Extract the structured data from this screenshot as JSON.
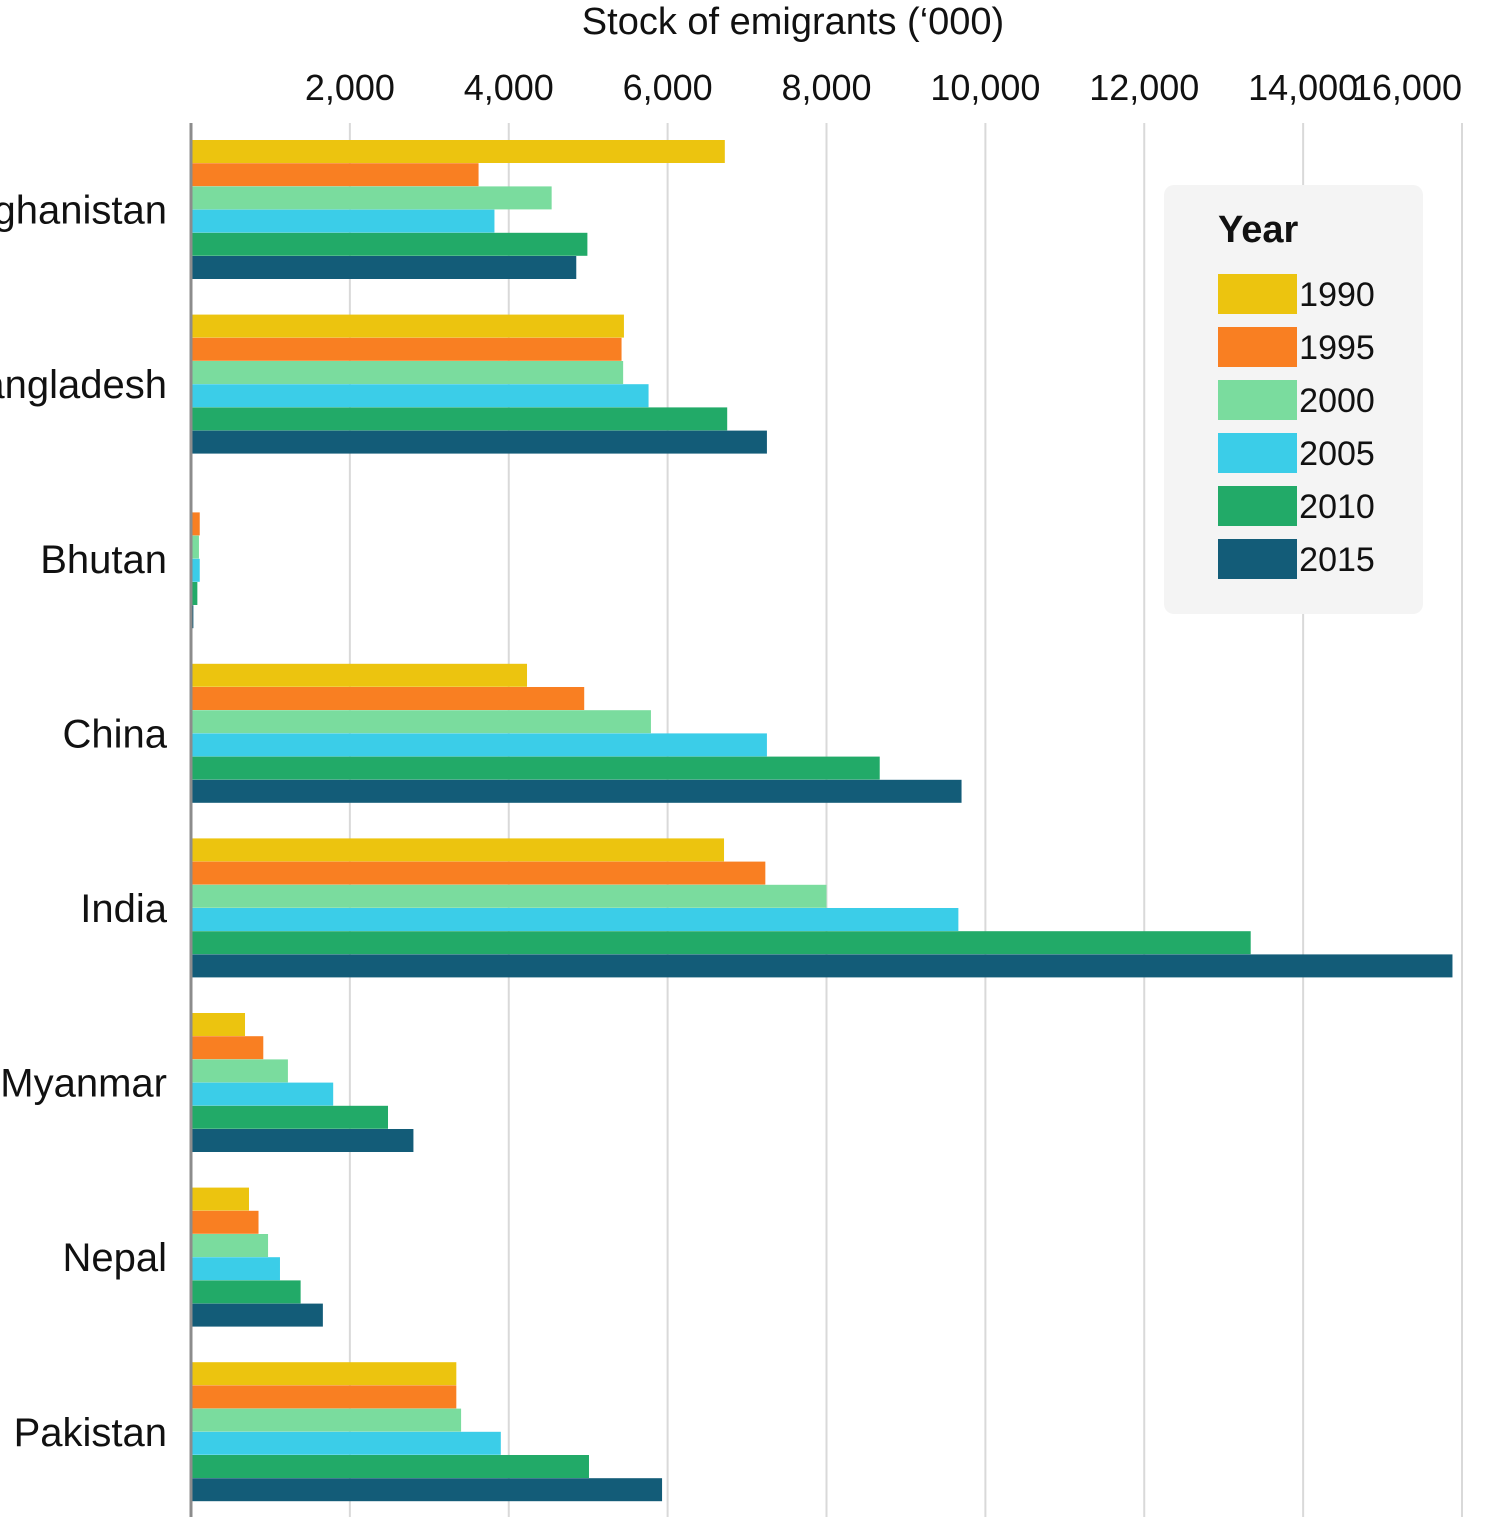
{
  "chart_data": {
    "type": "bar",
    "orientation": "horizontal",
    "title": "",
    "xlabel": "Stock of emigrants (‘000)",
    "ylabel": "",
    "xlim": [
      0,
      16000
    ],
    "x_ticks": [
      2000,
      4000,
      6000,
      8000,
      10000,
      12000,
      14000,
      16000
    ],
    "x_tick_labels": [
      "2,000",
      "4,000",
      "6,000",
      "8,000",
      "10,000",
      "12,000",
      "14,000",
      "16,000"
    ],
    "grid": true,
    "categories": [
      "Afghanistan",
      "Bangladesh",
      "Bhutan",
      "China",
      "India",
      "Myanmar",
      "Nepal",
      "Pakistan"
    ],
    "legend": {
      "title": "Year",
      "position": "top-right"
    },
    "series": [
      {
        "name": "1990",
        "color": "#ECC40F",
        "values": [
          6720,
          5450,
          10,
          4230,
          6710,
          680,
          730,
          3340
        ]
      },
      {
        "name": "1995",
        "color": "#F97F22",
        "values": [
          3620,
          5420,
          110,
          4950,
          7230,
          910,
          850,
          3340
        ]
      },
      {
        "name": "2000",
        "color": "#7ADC9E",
        "values": [
          4540,
          5440,
          100,
          5790,
          8000,
          1220,
          970,
          3400
        ]
      },
      {
        "name": "2005",
        "color": "#3BCDE8",
        "values": [
          3820,
          5760,
          110,
          7250,
          9660,
          1790,
          1120,
          3900
        ]
      },
      {
        "name": "2010",
        "color": "#22AA68",
        "values": [
          4990,
          6750,
          80,
          8670,
          13340,
          2480,
          1380,
          5010
        ]
      },
      {
        "name": "2015",
        "color": "#135C78",
        "values": [
          4850,
          7250,
          30,
          9700,
          15880,
          2800,
          1660,
          5930
        ]
      }
    ]
  }
}
